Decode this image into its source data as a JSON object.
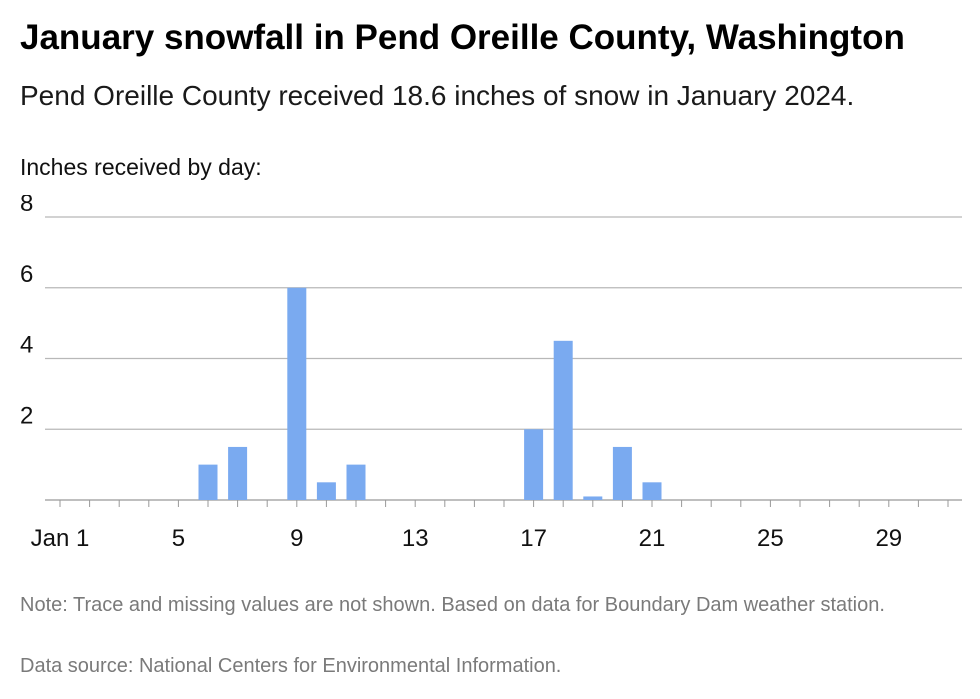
{
  "header": {
    "title": "January snowfall in Pend Oreille County, Washington",
    "subtitle": "Pend Oreille County received 18.6 inches of snow in January 2024."
  },
  "chart_data": {
    "type": "bar",
    "ylabel": "Inches received by day:",
    "ylim": [
      0,
      8
    ],
    "yticks": [
      "2",
      "4",
      "6",
      "8"
    ],
    "xticks": [
      {
        "day": 1,
        "label": "Jan 1"
      },
      {
        "day": 5,
        "label": "5"
      },
      {
        "day": 9,
        "label": "9"
      },
      {
        "day": 13,
        "label": "13"
      },
      {
        "day": 17,
        "label": "17"
      },
      {
        "day": 21,
        "label": "21"
      },
      {
        "day": 25,
        "label": "25"
      },
      {
        "day": 29,
        "label": "29"
      }
    ],
    "x": [
      6,
      7,
      9,
      10,
      11,
      17,
      18,
      19,
      20,
      21
    ],
    "values": [
      1.0,
      1.5,
      6.0,
      0.5,
      1.0,
      2.0,
      4.5,
      0.1,
      1.5,
      0.5
    ],
    "color": "#7aaaf0",
    "grid": true
  },
  "footer": {
    "note": "Note: Trace and missing values are not shown. Based on data for Boundary Dam weather station.",
    "source": "Data source: National Centers for Environmental Information."
  }
}
